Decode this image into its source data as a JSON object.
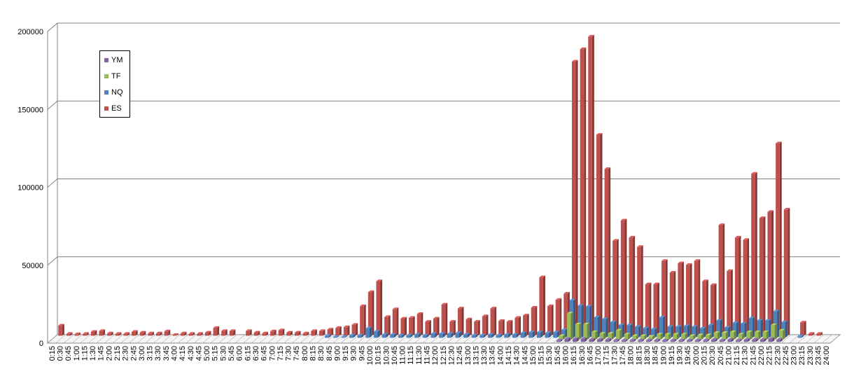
{
  "chart_data": {
    "type": "bar",
    "categories": [
      "0:15",
      "0:30",
      "0:45",
      "1:00",
      "1:15",
      "1:30",
      "1:45",
      "2:00",
      "2:15",
      "2:30",
      "2:45",
      "3:00",
      "3:15",
      "3:30",
      "3:45",
      "4:00",
      "4:15",
      "4:30",
      "4:45",
      "5:00",
      "5:15",
      "5:30",
      "5:45",
      "6:00",
      "6:15",
      "6:30",
      "6:45",
      "7:00",
      "7:15",
      "7:30",
      "7:45",
      "8:00",
      "8:15",
      "8:30",
      "8:45",
      "9:00",
      "9:15",
      "9:30",
      "9:45",
      "10:00",
      "10:15",
      "10:30",
      "10:45",
      "11:00",
      "11:15",
      "11:30",
      "11:45",
      "12:00",
      "12:15",
      "12:30",
      "12:45",
      "13:00",
      "13:15",
      "13:30",
      "13:45",
      "14:00",
      "14:15",
      "14:30",
      "14:45",
      "15:00",
      "15:15",
      "15:30",
      "15:45",
      "16:00",
      "16:15",
      "16:30",
      "16:45",
      "17:00",
      "17:15",
      "17:30",
      "17:45",
      "18:00",
      "18:15",
      "18:30",
      "18:45",
      "19:00",
      "19:15",
      "19:30",
      "19:45",
      "20:00",
      "20:15",
      "20:30",
      "20:45",
      "21:00",
      "21:15",
      "21:30",
      "21:45",
      "22:00",
      "22:15",
      "22:30",
      "22:45",
      "23:00",
      "23:15",
      "23:30",
      "23:45",
      "24:00"
    ],
    "series": [
      {
        "name": "ES",
        "color": "#C0504D",
        "values": [
          6500,
          1200,
          1000,
          1200,
          2500,
          3000,
          1500,
          1200,
          1200,
          2500,
          2000,
          1500,
          1500,
          2800,
          500,
          1500,
          1200,
          1200,
          2000,
          5000,
          3000,
          3000,
          0,
          3000,
          2000,
          1500,
          2800,
          3500,
          2000,
          2000,
          1500,
          3000,
          3000,
          4000,
          5000,
          5500,
          7000,
          19000,
          28000,
          35000,
          12000,
          17000,
          11000,
          11500,
          14000,
          9000,
          11000,
          20000,
          9000,
          17500,
          10500,
          9000,
          12500,
          17500,
          9500,
          9000,
          11500,
          13000,
          18000,
          37500,
          19000,
          23000,
          27000,
          176000,
          184000,
          192000,
          129000,
          107000,
          61000,
          74000,
          63000,
          57000,
          33000,
          33000,
          48000,
          40500,
          46500,
          45500,
          48000,
          35000,
          32500,
          71000,
          41500,
          63000,
          61500,
          104000,
          75500,
          79500,
          123500,
          81000,
          0,
          8500,
          1200,
          1200,
          0,
          0
        ]
      },
      {
        "name": "NQ",
        "color": "#4F81BD",
        "values": [
          0,
          0,
          0,
          0,
          0,
          0,
          0,
          0,
          0,
          0,
          0,
          0,
          0,
          0,
          0,
          0,
          0,
          0,
          0,
          0,
          0,
          0,
          0,
          0,
          0,
          0,
          0,
          0,
          0,
          0,
          0,
          0,
          0,
          1200,
          500,
          500,
          1500,
          1500,
          6000,
          4000,
          2000,
          2000,
          1500,
          1500,
          2000,
          1500,
          2500,
          2500,
          2500,
          3000,
          2000,
          1500,
          1500,
          2000,
          1500,
          2000,
          2000,
          3000,
          3500,
          3500,
          3000,
          3500,
          5000,
          24000,
          20500,
          20000,
          13000,
          12000,
          10000,
          8000,
          8000,
          7000,
          6000,
          5500,
          13000,
          7000,
          7000,
          7500,
          7000,
          6000,
          8000,
          11000,
          6500,
          9500,
          9000,
          12500,
          11000,
          11000,
          17000,
          10000,
          0,
          1000,
          0,
          0,
          0,
          0
        ]
      },
      {
        "name": "TF",
        "color": "#9BBB59",
        "values": [
          0,
          0,
          0,
          0,
          0,
          0,
          0,
          0,
          0,
          0,
          0,
          0,
          0,
          0,
          0,
          0,
          0,
          0,
          0,
          0,
          0,
          0,
          0,
          0,
          0,
          0,
          0,
          0,
          0,
          0,
          0,
          0,
          0,
          0,
          0,
          0,
          0,
          0,
          0,
          0,
          0,
          0,
          0,
          0,
          0,
          0,
          0,
          0,
          0,
          0,
          0,
          0,
          0,
          0,
          0,
          0,
          0,
          0,
          0,
          0,
          0,
          0,
          2500,
          17000,
          10000,
          10000,
          5000,
          4000,
          4000,
          6000,
          3500,
          2500,
          2500,
          2000,
          3500,
          3500,
          3500,
          3500,
          2500,
          3000,
          3000,
          4500,
          4500,
          5000,
          3500,
          5000,
          5000,
          5000,
          9500,
          6000,
          0,
          0,
          0,
          0,
          0,
          0
        ]
      },
      {
        "name": "YM",
        "color": "#8064A2",
        "values": [
          0,
          0,
          0,
          0,
          0,
          0,
          0,
          0,
          0,
          0,
          0,
          0,
          0,
          0,
          0,
          0,
          0,
          0,
          0,
          0,
          0,
          0,
          0,
          0,
          0,
          0,
          0,
          0,
          0,
          0,
          0,
          0,
          0,
          0,
          0,
          0,
          0,
          0,
          0,
          0,
          0,
          0,
          0,
          0,
          0,
          0,
          0,
          0,
          0,
          0,
          0,
          0,
          0,
          0,
          0,
          0,
          0,
          0,
          0,
          0,
          0,
          0,
          1000,
          2000,
          2000,
          2000,
          1500,
          1500,
          1500,
          1000,
          1000,
          1000,
          1000,
          1000,
          1000,
          1000,
          1000,
          1000,
          1000,
          1000,
          1000,
          1500,
          1000,
          1500,
          1000,
          1500,
          1500,
          1500,
          2000,
          1500,
          0,
          0,
          0,
          0,
          0,
          0
        ]
      }
    ],
    "legend_order": [
      "YM",
      "TF",
      "NQ",
      "ES"
    ],
    "yticks": [
      "0",
      "50000",
      "100000",
      "150000",
      "200000"
    ],
    "ylim": [
      0,
      200000
    ],
    "grid": true,
    "legend_position": "top-left"
  }
}
